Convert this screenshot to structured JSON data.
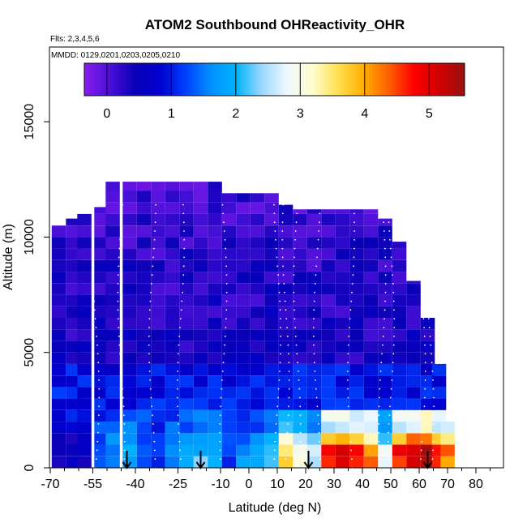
{
  "chart_data": {
    "type": "heatmap",
    "title": "ATOM2 Southbound OHReactivity_OHR",
    "flights_note": "Flts: 2,3,4,5,6",
    "dates_note": "MMDD: 0129,0201,0203,0205,0210",
    "xlabel": "Latitude (deg N)",
    "ylabel": "Altitude (m)",
    "xlim": [
      -70,
      85
    ],
    "ylim": [
      0,
      17500
    ],
    "x_ticks": [
      -70,
      -55,
      -40,
      -25,
      -10,
      0,
      10,
      20,
      30,
      40,
      50,
      60,
      70,
      80
    ],
    "x_minor_ticks": [
      -65,
      -60,
      -50,
      -45,
      -35,
      -30,
      -20,
      -15,
      -5,
      5,
      15,
      25,
      35,
      45,
      55,
      65,
      75,
      85
    ],
    "y_ticks": [
      0,
      5000,
      10000,
      15000
    ],
    "colorbar": {
      "ticks": [
        0,
        1,
        2,
        3,
        4,
        5
      ],
      "range": [
        -0.35,
        5.55
      ],
      "colors": [
        "#8a1cf0",
        "#4a10d8",
        "#0a00b8",
        "#0000d0",
        "#0040ff",
        "#0090ff",
        "#00b4ff",
        "#9ad8ff",
        "#f0f8ff",
        "#fffcd0",
        "#ffe050",
        "#ffb000",
        "#ff6000",
        "#ff0000",
        "#d00000",
        "#9a1010"
      ]
    },
    "profile_latitudes": [
      -54,
      -45,
      -34,
      -24,
      -9,
      10,
      13,
      17,
      24,
      36,
      47,
      50,
      61,
      64
    ],
    "columns": [
      {
        "lat": -67,
        "top": 10500,
        "surf": 0.6
      },
      {
        "lat": -62,
        "top": 10800,
        "surf": 0.4
      },
      {
        "lat": -58,
        "top": 11000,
        "surf": 0.6
      },
      {
        "lat": -52,
        "top": 11300,
        "surf": 1.3
      },
      {
        "lat": -48,
        "top": 12400,
        "surf": 1.6
      },
      {
        "lat": -42,
        "top": 12400,
        "surf": 1.8
      },
      {
        "lat": -37,
        "top": 12400,
        "surf": 1.2
      },
      {
        "lat": -32,
        "top": 12400,
        "surf": 1.2
      },
      {
        "lat": -27,
        "top": 12400,
        "surf": 1.6
      },
      {
        "lat": -22,
        "top": 12400,
        "surf": 1.9
      },
      {
        "lat": -17,
        "top": 12400,
        "surf": 2.1
      },
      {
        "lat": -12,
        "top": 12400,
        "surf": 1.8
      },
      {
        "lat": -7,
        "top": 11900,
        "surf": 1.2
      },
      {
        "lat": -2,
        "top": 11900,
        "surf": 1.6
      },
      {
        "lat": 3,
        "top": 11900,
        "surf": 1.7
      },
      {
        "lat": 8,
        "top": 11900,
        "surf": 2.2
      },
      {
        "lat": 13,
        "top": 11400,
        "surf": 3.5
      },
      {
        "lat": 18,
        "top": 11200,
        "surf": 3.1
      },
      {
        "lat": 23,
        "top": 11200,
        "surf": 2.4
      },
      {
        "lat": 28,
        "top": 11200,
        "surf": 4.7
      },
      {
        "lat": 33,
        "top": 11200,
        "surf": 4.9
      },
      {
        "lat": 38,
        "top": 11200,
        "surf": 4.6
      },
      {
        "lat": 43,
        "top": 11200,
        "surf": 4.3
      },
      {
        "lat": 48,
        "top": 10800,
        "surf": 2.8
      },
      {
        "lat": 53,
        "top": 9800,
        "surf": 4.7
      },
      {
        "lat": 58,
        "top": 8100,
        "surf": 5.2
      },
      {
        "lat": 63,
        "top": 6500,
        "surf": 5.3
      },
      {
        "lat": 67,
        "top": 4500,
        "surf": 4.9
      },
      {
        "lat": 70,
        "top": 2000,
        "surf": 4.2
      }
    ],
    "arrows_lat": [
      -43,
      -17,
      21,
      63
    ]
  }
}
